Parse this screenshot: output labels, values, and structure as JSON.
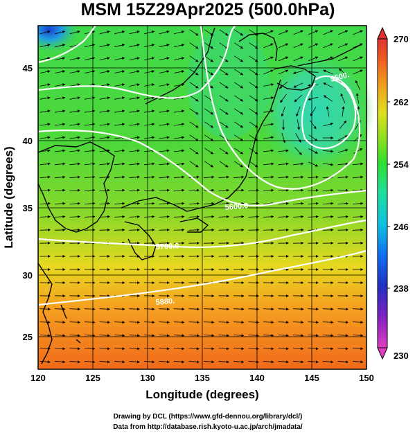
{
  "title": "MSM 15Z29Apr2025 (500.0hPa)",
  "xlabel": "Longitude (degrees)",
  "ylabel": "Latitude  (degrees)",
  "x_ticks": [
    "120",
    "125",
    "130",
    "135",
    "140",
    "145",
    "150"
  ],
  "y_ticks": [
    "25",
    "30",
    "35",
    "40",
    "45"
  ],
  "colorbar": {
    "ticks": [
      "270",
      "262",
      "254",
      "246",
      "238",
      "230"
    ],
    "min": 230,
    "max": 270,
    "colors": [
      "#e040c0",
      "#8020c0",
      "#2030c0",
      "#1070f0",
      "#10c0e0",
      "#20e0a0",
      "#30e030",
      "#90e020",
      "#e0e020",
      "#f0a020",
      "#f06020",
      "#e03030"
    ]
  },
  "contours": {
    "label_5880": "5880.",
    "label_5800": "5800.",
    "label_5700": "5700.0",
    "label_5600": "5600.0",
    "label_5500": "5500."
  },
  "credits": {
    "line1": "Drawing by DCL (https://www.gfd-dennou.org/library/dcl/)",
    "line2": "Data from http://database.rish.kyoto-u.ac.jp/arch/jmadata/"
  }
}
